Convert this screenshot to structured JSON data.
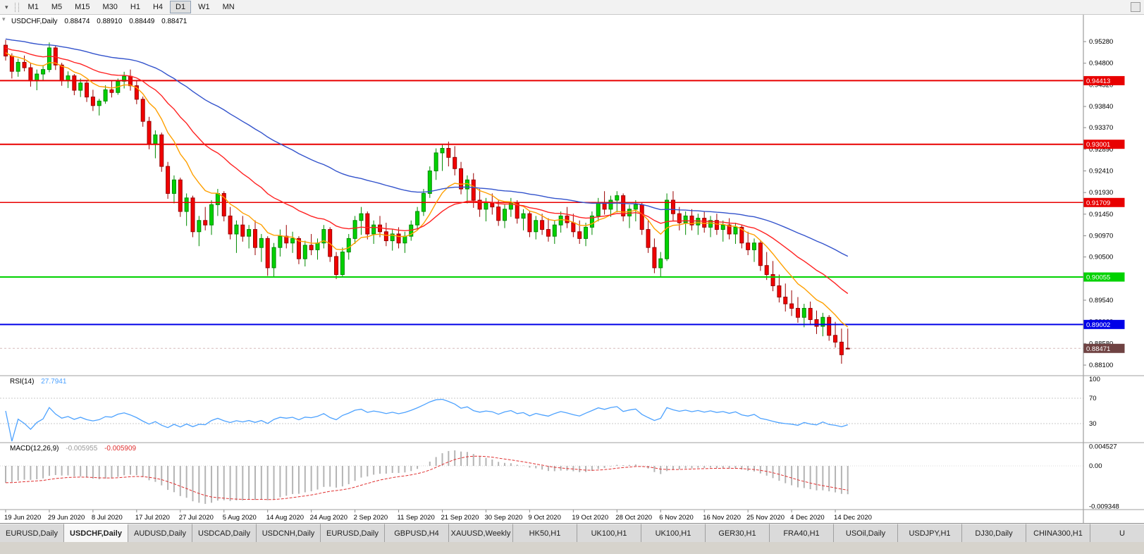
{
  "toolbar": {
    "timeframes": [
      "M1",
      "M5",
      "M15",
      "M30",
      "H1",
      "H4",
      "D1",
      "W1",
      "MN"
    ],
    "active_timeframe": "D1"
  },
  "chart": {
    "symbol": "USDCHF,Daily",
    "ohlc": {
      "open": "0.88474",
      "high": "0.88910",
      "low": "0.88449",
      "close": "0.88471"
    },
    "price_ticks": [
      0.9528,
      0.948,
      0.9432,
      0.9384,
      0.9337,
      0.9289,
      0.9241,
      0.9193,
      0.9145,
      0.9097,
      0.905,
      0.9002,
      0.8954,
      0.8906,
      0.8858,
      0.881
    ],
    "hlines": [
      {
        "label": "0.94413",
        "value": 0.94413,
        "color": "#e80000",
        "width": 2
      },
      {
        "label": "0.93001",
        "value": 0.93001,
        "color": "#e80000",
        "width": 2
      },
      {
        "label": "0.91709",
        "value": 0.91709,
        "color": "#e80000",
        "width": 1.5
      },
      {
        "label": "0.90055",
        "value": 0.90055,
        "color": "#00d200",
        "width": 2
      },
      {
        "label": "0.89002",
        "value": 0.89002,
        "color": "#0000e8",
        "width": 2
      }
    ],
    "current_price": {
      "label": "0.88471",
      "value": 0.88471,
      "badge_color": "#6f4242"
    },
    "date_labels": [
      "19 Jun 2020",
      "29 Jun 2020",
      "8 Jul 2020",
      "17 Jul 2020",
      "27 Jul 2020",
      "5 Aug 2020",
      "14 Aug 2020",
      "24 Aug 2020",
      "2 Sep 2020",
      "11 Sep 2020",
      "21 Sep 2020",
      "30 Sep 2020",
      "9 Oct 2020",
      "19 Oct 2020",
      "28 Oct 2020",
      "6 Nov 2020",
      "16 Nov 2020",
      "25 Nov 2020",
      "4 Dec 2020",
      "14 Dec 2020"
    ],
    "label_every_n_bars": 7,
    "up": {
      "fill": "#00d200",
      "border": "#008a00"
    },
    "down": {
      "fill": "#f20000",
      "border": "#9a0000"
    },
    "ma": [
      {
        "name": "fast-ma",
        "period": 10,
        "seed": 0.9505,
        "color": "#ffa000"
      },
      {
        "name": "mid-ma",
        "period": 25,
        "seed": 0.9515,
        "color": "#ff2222"
      },
      {
        "name": "slow-ma",
        "period": 60,
        "seed": 0.9535,
        "color": "#3353cc"
      }
    ]
  },
  "indicators": {
    "rsi": {
      "name": "RSI(14)",
      "value": "27.7941",
      "period": 14,
      "color": "#4da2ff",
      "levels": [
        100,
        70,
        30
      ]
    },
    "macd": {
      "name": "MACD(12,26,9)",
      "macd_value": "-0.005955",
      "signal_value": "-0.005909",
      "fast": 12,
      "slow": 26,
      "signal": 9,
      "hist_color": "#b4b4b4",
      "signal_color": "#e03030",
      "axis": [
        {
          "label": "0.004527",
          "value": 0.004527
        },
        {
          "label": "0.00",
          "value": 0
        },
        {
          "label": "-0.009348",
          "value": -0.009348
        }
      ]
    }
  },
  "tabs": {
    "active_index": 1,
    "items": [
      "EURUSD,Daily",
      "USDCHF,Daily",
      "AUDUSD,Daily",
      "USDCAD,Daily",
      "USDCNH,Daily",
      "EURUSD,Daily",
      "GBPUSD,H4",
      "XAUUSD,Weekly",
      "HK50,H1",
      "UK100,H1",
      "UK100,H1",
      "GER30,H1",
      "FRA40,H1",
      "USOil,Daily",
      "USDJPY,H1",
      "DJ30,Daily",
      "CHINA300,H1",
      "U"
    ]
  },
  "chart_data": {
    "type": "candlestick",
    "symbol": "USDCHF",
    "timeframe": "Daily",
    "first_bar_date": "19 Jun 2020",
    "last_close": 0.88471,
    "ylim": [
      0.881,
      0.9528
    ],
    "candles": [
      [
        0.952,
        0.9532,
        0.9486,
        0.9496
      ],
      [
        0.9496,
        0.9502,
        0.9446,
        0.9462
      ],
      [
        0.9462,
        0.949,
        0.945,
        0.9482
      ],
      [
        0.9482,
        0.9497,
        0.9462,
        0.947
      ],
      [
        0.947,
        0.9481,
        0.9428,
        0.9441
      ],
      [
        0.9441,
        0.9466,
        0.942,
        0.9456
      ],
      [
        0.9456,
        0.9476,
        0.9441,
        0.9466
      ],
      [
        0.9466,
        0.9526,
        0.946,
        0.9514
      ],
      [
        0.9514,
        0.9519,
        0.9465,
        0.9476
      ],
      [
        0.9476,
        0.9481,
        0.943,
        0.9441
      ],
      [
        0.9441,
        0.9462,
        0.9425,
        0.9452
      ],
      [
        0.9452,
        0.9456,
        0.9409,
        0.942
      ],
      [
        0.942,
        0.9446,
        0.9405,
        0.9436
      ],
      [
        0.9436,
        0.9441,
        0.9394,
        0.9405
      ],
      [
        0.9405,
        0.9421,
        0.9374,
        0.9386
      ],
      [
        0.9386,
        0.9401,
        0.9364,
        0.9396
      ],
      [
        0.9396,
        0.9431,
        0.939,
        0.9421
      ],
      [
        0.9421,
        0.9441,
        0.9404,
        0.9415
      ],
      [
        0.9415,
        0.9446,
        0.941,
        0.944
      ],
      [
        0.944,
        0.9461,
        0.9424,
        0.9451
      ],
      [
        0.9451,
        0.9466,
        0.9419,
        0.943
      ],
      [
        0.943,
        0.9441,
        0.9389,
        0.94
      ],
      [
        0.94,
        0.9406,
        0.9339,
        0.9351
      ],
      [
        0.9351,
        0.9361,
        0.9289,
        0.9301
      ],
      [
        0.9301,
        0.9331,
        0.9269,
        0.9321
      ],
      [
        0.9321,
        0.9326,
        0.9239,
        0.9251
      ],
      [
        0.9251,
        0.9261,
        0.9179,
        0.9191
      ],
      [
        0.9191,
        0.9231,
        0.9169,
        0.9221
      ],
      [
        0.9221,
        0.9226,
        0.9139,
        0.9151
      ],
      [
        0.9151,
        0.9191,
        0.9119,
        0.9181
      ],
      [
        0.9181,
        0.9186,
        0.9094,
        0.9106
      ],
      [
        0.9106,
        0.9141,
        0.9074,
        0.9131
      ],
      [
        0.9131,
        0.9161,
        0.9109,
        0.9121
      ],
      [
        0.9121,
        0.9176,
        0.9099,
        0.9166
      ],
      [
        0.9166,
        0.9201,
        0.9141,
        0.9191
      ],
      [
        0.9191,
        0.9196,
        0.9129,
        0.9141
      ],
      [
        0.9141,
        0.9161,
        0.9089,
        0.9101
      ],
      [
        0.9101,
        0.9131,
        0.9059,
        0.9121
      ],
      [
        0.9121,
        0.9141,
        0.9084,
        0.9096
      ],
      [
        0.9096,
        0.9121,
        0.9069,
        0.9111
      ],
      [
        0.9111,
        0.9131,
        0.9054,
        0.9071
      ],
      [
        0.9071,
        0.9101,
        0.9039,
        0.9091
      ],
      [
        0.9091,
        0.9096,
        0.9008,
        0.9026
      ],
      [
        0.9026,
        0.9081,
        0.9006,
        0.9071
      ],
      [
        0.9071,
        0.9111,
        0.9051,
        0.9096
      ],
      [
        0.9096,
        0.9121,
        0.9069,
        0.9081
      ],
      [
        0.9081,
        0.9106,
        0.9059,
        0.9091
      ],
      [
        0.9091,
        0.9096,
        0.9034,
        0.9046
      ],
      [
        0.9046,
        0.9086,
        0.9029,
        0.9076
      ],
      [
        0.9076,
        0.9101,
        0.9054,
        0.9066
      ],
      [
        0.9066,
        0.9091,
        0.9044,
        0.9081
      ],
      [
        0.9081,
        0.9121,
        0.9069,
        0.9111
      ],
      [
        0.9111,
        0.9116,
        0.9039,
        0.9051
      ],
      [
        0.9051,
        0.9061,
        0.9001,
        0.9011
      ],
      [
        0.9011,
        0.9071,
        0.9004,
        0.9061
      ],
      [
        0.9061,
        0.9101,
        0.9044,
        0.9091
      ],
      [
        0.9091,
        0.9141,
        0.9079,
        0.9131
      ],
      [
        0.9131,
        0.9161,
        0.9099,
        0.9146
      ],
      [
        0.9146,
        0.9151,
        0.9089,
        0.9101
      ],
      [
        0.9101,
        0.9131,
        0.9079,
        0.9121
      ],
      [
        0.9121,
        0.9141,
        0.9094,
        0.9106
      ],
      [
        0.9106,
        0.9126,
        0.9074,
        0.9086
      ],
      [
        0.9086,
        0.9111,
        0.9064,
        0.9101
      ],
      [
        0.9101,
        0.9116,
        0.9069,
        0.9081
      ],
      [
        0.9081,
        0.9106,
        0.9059,
        0.9096
      ],
      [
        0.9096,
        0.9131,
        0.9086,
        0.9121
      ],
      [
        0.9121,
        0.9161,
        0.9111,
        0.9151
      ],
      [
        0.9151,
        0.9201,
        0.9141,
        0.9191
      ],
      [
        0.9191,
        0.9251,
        0.9181,
        0.9241
      ],
      [
        0.9241,
        0.9291,
        0.9221,
        0.9281
      ],
      [
        0.9281,
        0.9301,
        0.9241,
        0.9291
      ],
      [
        0.9291,
        0.9306,
        0.9251,
        0.9271
      ],
      [
        0.9271,
        0.9296,
        0.9231,
        0.9246
      ],
      [
        0.9246,
        0.9261,
        0.9189,
        0.9201
      ],
      [
        0.9201,
        0.9231,
        0.9169,
        0.9221
      ],
      [
        0.9221,
        0.9236,
        0.9159,
        0.9176
      ],
      [
        0.9176,
        0.9201,
        0.9139,
        0.9156
      ],
      [
        0.9156,
        0.9181,
        0.9129,
        0.9171
      ],
      [
        0.9171,
        0.9191,
        0.9144,
        0.9161
      ],
      [
        0.9161,
        0.9176,
        0.9119,
        0.9131
      ],
      [
        0.9131,
        0.9166,
        0.9114,
        0.9156
      ],
      [
        0.9156,
        0.9181,
        0.9139,
        0.9171
      ],
      [
        0.9171,
        0.9176,
        0.9124,
        0.9136
      ],
      [
        0.9136,
        0.9156,
        0.9109,
        0.9146
      ],
      [
        0.9146,
        0.9151,
        0.9094,
        0.9106
      ],
      [
        0.9106,
        0.9141,
        0.9089,
        0.9131
      ],
      [
        0.9131,
        0.9146,
        0.9099,
        0.9111
      ],
      [
        0.9111,
        0.9136,
        0.9084,
        0.9096
      ],
      [
        0.9096,
        0.9131,
        0.9079,
        0.9121
      ],
      [
        0.9121,
        0.9151,
        0.9104,
        0.9141
      ],
      [
        0.9141,
        0.9161,
        0.9114,
        0.9126
      ],
      [
        0.9126,
        0.9146,
        0.9094,
        0.9106
      ],
      [
        0.9106,
        0.9131,
        0.9079,
        0.9091
      ],
      [
        0.9091,
        0.9126,
        0.9074,
        0.9116
      ],
      [
        0.9116,
        0.9151,
        0.9099,
        0.9141
      ],
      [
        0.9141,
        0.9181,
        0.9129,
        0.9171
      ],
      [
        0.9171,
        0.9196,
        0.9144,
        0.9156
      ],
      [
        0.9156,
        0.9186,
        0.9139,
        0.9176
      ],
      [
        0.9176,
        0.9196,
        0.9149,
        0.9186
      ],
      [
        0.9186,
        0.9191,
        0.9129,
        0.9141
      ],
      [
        0.9141,
        0.9166,
        0.9114,
        0.9156
      ],
      [
        0.9156,
        0.9176,
        0.9129,
        0.9166
      ],
      [
        0.9166,
        0.9171,
        0.9099,
        0.9111
      ],
      [
        0.9111,
        0.9131,
        0.9059,
        0.9071
      ],
      [
        0.9071,
        0.9091,
        0.9014,
        0.9026
      ],
      [
        0.9026,
        0.9061,
        0.9004,
        0.9046
      ],
      [
        0.9046,
        0.9191,
        0.9041,
        0.9176
      ],
      [
        0.9176,
        0.9196,
        0.9129,
        0.9146
      ],
      [
        0.9146,
        0.9161,
        0.9109,
        0.9126
      ],
      [
        0.9126,
        0.9151,
        0.9099,
        0.9141
      ],
      [
        0.9141,
        0.9156,
        0.9109,
        0.9121
      ],
      [
        0.9121,
        0.9146,
        0.9099,
        0.9136
      ],
      [
        0.9136,
        0.9151,
        0.9104,
        0.9116
      ],
      [
        0.9116,
        0.9141,
        0.9094,
        0.9131
      ],
      [
        0.9131,
        0.9146,
        0.9099,
        0.9111
      ],
      [
        0.9111,
        0.9131,
        0.9084,
        0.9121
      ],
      [
        0.9121,
        0.9136,
        0.9089,
        0.9101
      ],
      [
        0.9101,
        0.9126,
        0.9079,
        0.9116
      ],
      [
        0.9116,
        0.9121,
        0.9069,
        0.9081
      ],
      [
        0.9081,
        0.9106,
        0.9054,
        0.9066
      ],
      [
        0.9066,
        0.9091,
        0.9039,
        0.9081
      ],
      [
        0.9081,
        0.9086,
        0.9019,
        0.9031
      ],
      [
        0.9031,
        0.9061,
        0.8999,
        0.9011
      ],
      [
        0.9011,
        0.9041,
        0.8974,
        0.8986
      ],
      [
        0.8986,
        0.9011,
        0.8949,
        0.8961
      ],
      [
        0.8961,
        0.8991,
        0.8929,
        0.8946
      ],
      [
        0.8946,
        0.8976,
        0.8919,
        0.8936
      ],
      [
        0.8936,
        0.8961,
        0.8904,
        0.8916
      ],
      [
        0.8916,
        0.8946,
        0.8894,
        0.8936
      ],
      [
        0.8936,
        0.8951,
        0.8899,
        0.8911
      ],
      [
        0.8911,
        0.8931,
        0.8879,
        0.8896
      ],
      [
        0.8896,
        0.8926,
        0.8874,
        0.8916
      ],
      [
        0.8916,
        0.8921,
        0.8864,
        0.8876
      ],
      [
        0.8876,
        0.8906,
        0.8849,
        0.8861
      ],
      [
        0.8861,
        0.8891,
        0.8813,
        0.8833
      ],
      [
        0.88474,
        0.8891,
        0.88449,
        0.88471
      ]
    ]
  }
}
